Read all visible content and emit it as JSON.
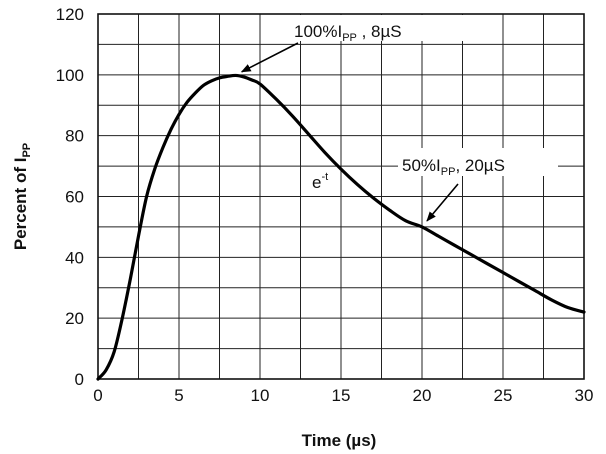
{
  "chart_data": {
    "type": "line",
    "xlabel": "Time (µs)",
    "ylabel": {
      "text": "Percent of I",
      "subscript": "PP"
    },
    "xlim": [
      0,
      30
    ],
    "ylim": [
      0,
      120
    ],
    "x_ticks": [
      0,
      5,
      10,
      15,
      20,
      25,
      30
    ],
    "y_ticks": [
      0,
      20,
      40,
      60,
      80,
      100,
      120
    ],
    "grid": "on",
    "x_grid": [
      0,
      2.5,
      5,
      7.5,
      10,
      12.5,
      15,
      17.5,
      20,
      22.5,
      25,
      27.5,
      30
    ],
    "y_grid": [
      0,
      10,
      20,
      30,
      40,
      50,
      60,
      70,
      80,
      90,
      100,
      110,
      120
    ],
    "series": [
      {
        "x": [
          0,
          0.5,
          1,
          1.5,
          2,
          2.5,
          3,
          3.5,
          4,
          4.5,
          5,
          5.5,
          6,
          6.5,
          7,
          7.5,
          8,
          8.5,
          9,
          9.5,
          10,
          11,
          12,
          13,
          14,
          15,
          16,
          17,
          18,
          19,
          20,
          21,
          22,
          23,
          24,
          25,
          26,
          27,
          28,
          29,
          30
        ],
        "y": [
          0,
          3,
          9,
          20,
          33,
          47,
          60,
          69,
          76,
          82,
          87,
          91,
          94,
          96.5,
          98,
          99,
          99.5,
          99.8,
          99.3,
          98.3,
          97,
          92,
          86.5,
          80.5,
          74.5,
          69,
          64,
          59.5,
          55.5,
          52,
          50,
          47,
          44,
          41,
          38,
          35,
          32,
          29,
          26,
          23.5,
          22
        ]
      }
    ],
    "annotations": [
      {
        "id": "peak",
        "base": "100%I",
        "sub": "PP",
        "tail": " , 8µS",
        "target": [
          8.5,
          100
        ]
      },
      {
        "id": "half",
        "base": "50%I",
        "sub": "PP",
        "tail": ", 20µS",
        "target": [
          20,
          50
        ]
      },
      {
        "id": "etag",
        "base": "e",
        "sup": "-t",
        "target": [
          14.5,
          72
        ]
      }
    ]
  }
}
